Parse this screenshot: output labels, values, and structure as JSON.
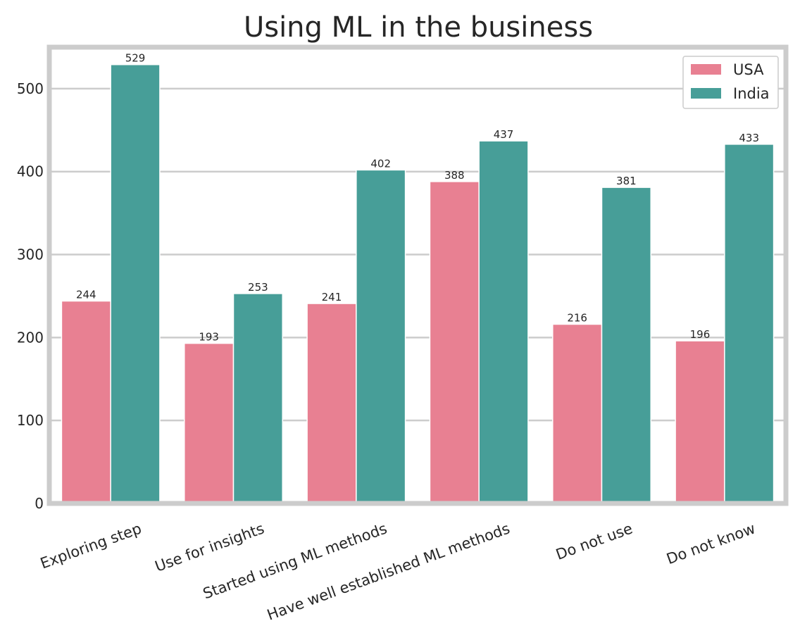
{
  "chart_data": {
    "type": "bar",
    "title": "Using ML in the business",
    "xlabel": "",
    "ylabel": "",
    "categories": [
      "Exploring step",
      "Use for insights",
      "Started using ML methods",
      "Have well established ML methods",
      "Do not use",
      "Do not know"
    ],
    "series": [
      {
        "name": "USA",
        "color": "#e88092",
        "values": [
          244,
          193,
          241,
          388,
          216,
          196
        ]
      },
      {
        "name": "India",
        "color": "#479e98",
        "values": [
          529,
          253,
          402,
          437,
          381,
          433
        ]
      }
    ],
    "ylim": [
      0,
      550
    ],
    "yticks": [
      0,
      100,
      200,
      300,
      400,
      500
    ],
    "grid": "horizontal",
    "legend": "top-right",
    "data_labels": true,
    "xtick_rotation": 20
  }
}
